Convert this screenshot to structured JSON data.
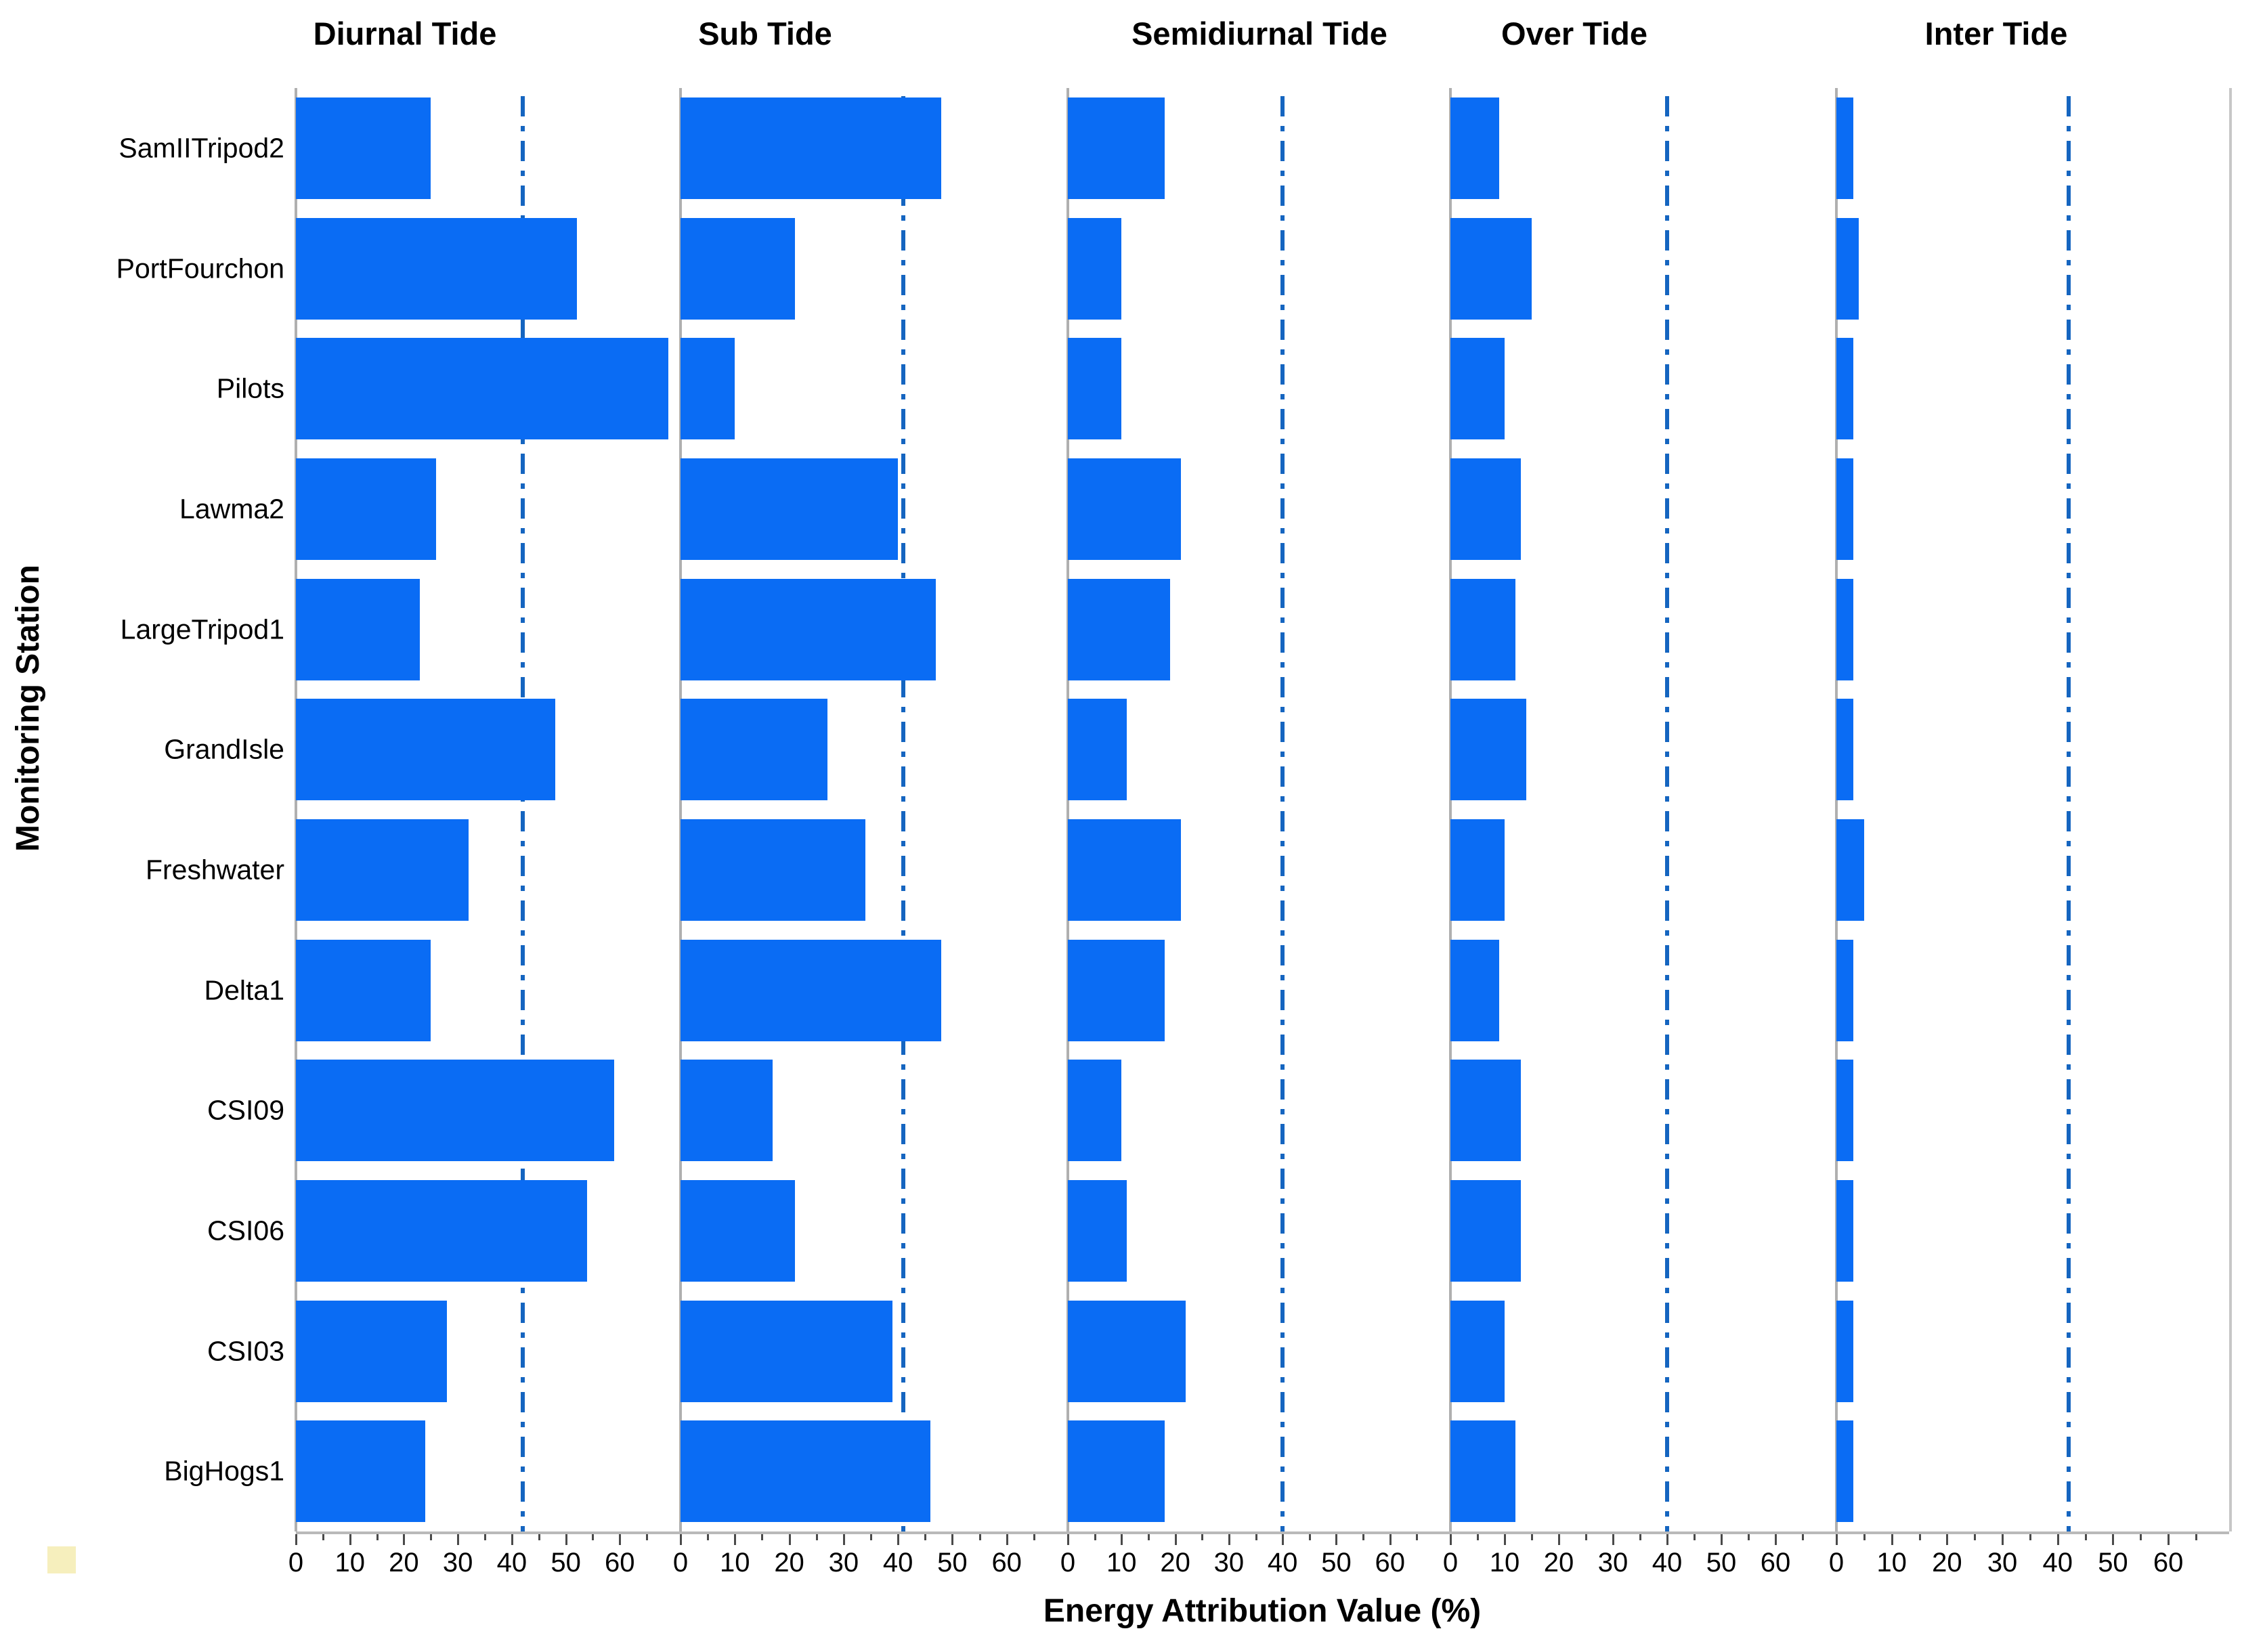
{
  "figure": {
    "x_axis_title": "Energy Attribution Value (%)",
    "y_axis_title": "Monitoring Station"
  },
  "colors": {
    "bar": "#0a6cf4",
    "reference_line": "#1565c0",
    "spine": "#b0b0b0",
    "axis_line": "#b9b9b9",
    "tick": "#4a4a4a",
    "text": "#000000",
    "corner_marker": "#f6efbd"
  },
  "chart_data": {
    "type": "bar",
    "orientation": "horizontal",
    "xlabel": "Energy Attribution Value (%)",
    "ylabel": "Monitoring Station",
    "categories": [
      "SamIITripod2",
      "PortFourchon",
      "Pilots",
      "Lawma2",
      "LargeTripod1",
      "GrandIsle",
      "Freshwater",
      "Delta1",
      "CSI09",
      "CSI06",
      "CSI03",
      "BigHogs1"
    ],
    "xlim": [
      0,
      71
    ],
    "x_ticks": [
      0,
      10,
      20,
      30,
      40,
      50,
      60
    ],
    "minor_tick_step": 5,
    "grid": false,
    "reference_line_style": "dash-dot",
    "panels": [
      {
        "title": "Diurnal Tide",
        "reference_line": 42,
        "values": [
          25,
          52,
          69,
          26,
          23,
          48,
          32,
          25,
          59,
          54,
          28,
          24
        ]
      },
      {
        "title": "Sub Tide",
        "reference_line": 41,
        "values": [
          48,
          21,
          10,
          40,
          47,
          27,
          34,
          48,
          17,
          21,
          39,
          46
        ]
      },
      {
        "title": "Semidiurnal Tide",
        "reference_line": 40,
        "values": [
          18,
          10,
          10,
          21,
          19,
          11,
          21,
          18,
          10,
          11,
          22,
          18
        ]
      },
      {
        "title": "Over Tide",
        "reference_line": 40,
        "values": [
          9,
          15,
          10,
          13,
          12,
          14,
          10,
          9,
          13,
          13,
          10,
          12
        ]
      },
      {
        "title": "Inter Tide",
        "reference_line": 42,
        "values": [
          3,
          4,
          3,
          3,
          3,
          3,
          5,
          3,
          3,
          3,
          3,
          3
        ]
      }
    ]
  }
}
